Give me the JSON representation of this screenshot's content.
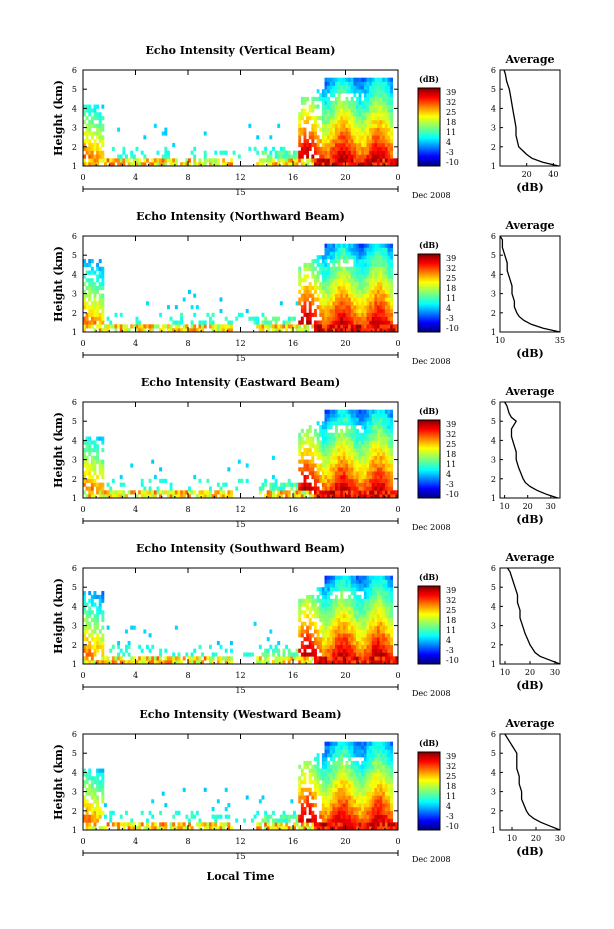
{
  "figure": {
    "x_tick_labels": [
      "0",
      "4",
      "8",
      "12",
      "16",
      "20",
      "0"
    ],
    "y_tick_labels": [
      "1",
      "2",
      "3",
      "4",
      "5",
      "6"
    ],
    "ylabel": "Height (km)",
    "date_label": "Dec 2008",
    "day_label": "15",
    "xlabel": "Local Time",
    "colorbar_unit": "(dB)",
    "colorbar_ticks": [
      "39",
      "32",
      "25",
      "18",
      "11",
      "4",
      "-3",
      "-10"
    ],
    "profile_title": "Average",
    "profile_xlabel": "(dB)"
  },
  "chart_data": [
    {
      "type": "heatmap",
      "title": "Echo Intensity (Vertical Beam)",
      "xlabel": "Local Time",
      "ylabel": "Height (km)",
      "x_range_hours": [
        0,
        24
      ],
      "ylim_km": [
        1,
        6
      ],
      "colorbar": {
        "label": "(dB)",
        "range": [
          -10,
          39
        ]
      },
      "average_profile": {
        "type": "line",
        "title": "Average",
        "xlabel": "(dB)",
        "xlim": [
          0,
          45
        ],
        "xticks": [
          "20",
          "40"
        ],
        "height_km": [
          1.0,
          1.2,
          1.4,
          1.6,
          1.8,
          2.0,
          2.3,
          2.6,
          3.0,
          3.4,
          3.8,
          4.2,
          4.6,
          5.0,
          5.4,
          5.8,
          6.0
        ],
        "db": [
          44,
          32,
          24,
          20,
          17,
          14,
          13,
          12,
          12,
          11,
          10,
          9,
          8,
          7,
          5,
          4,
          3
        ]
      }
    },
    {
      "type": "heatmap",
      "title": "Echo Intensity (Northward Beam)",
      "xlabel": "Local Time",
      "ylabel": "Height (km)",
      "x_range_hours": [
        0,
        24
      ],
      "ylim_km": [
        1,
        6
      ],
      "colorbar": {
        "label": "(dB)",
        "range": [
          -10,
          39
        ]
      },
      "average_profile": {
        "type": "line",
        "title": "Average",
        "xlabel": "(dB)",
        "xlim": [
          10,
          35
        ],
        "xticks": [
          "10",
          "35"
        ],
        "height_km": [
          1.0,
          1.2,
          1.4,
          1.6,
          1.8,
          2.0,
          2.3,
          2.6,
          3.0,
          3.4,
          3.8,
          4.2,
          4.6,
          5.0,
          5.4,
          5.8,
          6.0
        ],
        "db": [
          35,
          28,
          23,
          20,
          18,
          17,
          16,
          16,
          15,
          15,
          14,
          13,
          13,
          12,
          11,
          11,
          10
        ]
      }
    },
    {
      "type": "heatmap",
      "title": "Echo Intensity (Eastward Beam)",
      "xlabel": "Local Time",
      "ylabel": "Height (km)",
      "x_range_hours": [
        0,
        24
      ],
      "ylim_km": [
        1,
        6
      ],
      "colorbar": {
        "label": "(dB)",
        "range": [
          -10,
          39
        ]
      },
      "average_profile": {
        "type": "line",
        "title": "Average",
        "xlabel": "(dB)",
        "xlim": [
          8,
          34
        ],
        "xticks": [
          "10",
          "20",
          "30"
        ],
        "height_km": [
          1.0,
          1.2,
          1.4,
          1.6,
          1.8,
          2.0,
          2.3,
          2.6,
          3.0,
          3.4,
          3.8,
          4.2,
          4.6,
          5.0,
          5.2,
          5.4,
          5.8,
          6.0
        ],
        "db": [
          33,
          28,
          24,
          21,
          19,
          18,
          17,
          16,
          15,
          15,
          14,
          13,
          13,
          15,
          13,
          12,
          11,
          10
        ]
      }
    },
    {
      "type": "heatmap",
      "title": "Echo Intensity (Southward Beam)",
      "xlabel": "Local Time",
      "ylabel": "Height (km)",
      "x_range_hours": [
        0,
        24
      ],
      "ylim_km": [
        1,
        6
      ],
      "colorbar": {
        "label": "(dB)",
        "range": [
          -10,
          39
        ]
      },
      "average_profile": {
        "type": "line",
        "title": "Average",
        "xlabel": "(dB)",
        "xlim": [
          8,
          32
        ],
        "xticks": [
          "10",
          "20",
          "30"
        ],
        "height_km": [
          1.0,
          1.2,
          1.4,
          1.6,
          1.8,
          2.0,
          2.3,
          2.6,
          3.0,
          3.4,
          3.8,
          4.2,
          4.6,
          5.0,
          5.4,
          5.8,
          6.0
        ],
        "db": [
          32,
          28,
          24,
          22,
          21,
          20,
          19,
          18,
          17,
          16,
          16,
          15,
          15,
          14,
          13,
          12,
          11
        ]
      }
    },
    {
      "type": "heatmap",
      "title": "Echo Intensity (Westward Beam)",
      "xlabel": "Local Time",
      "ylabel": "Height (km)",
      "x_range_hours": [
        0,
        24
      ],
      "ylim_km": [
        1,
        6
      ],
      "colorbar": {
        "label": "(dB)",
        "range": [
          -10,
          39
        ]
      },
      "average_profile": {
        "type": "line",
        "title": "Average",
        "xlabel": "(dB)",
        "xlim": [
          5,
          30
        ],
        "xticks": [
          "10",
          "20",
          "30"
        ],
        "height_km": [
          1.0,
          1.2,
          1.4,
          1.6,
          1.8,
          2.0,
          2.3,
          2.6,
          3.0,
          3.4,
          3.8,
          4.2,
          4.6,
          5.0,
          5.4,
          5.8,
          6.0
        ],
        "db": [
          30,
          26,
          22,
          19,
          17,
          16,
          15,
          14,
          14,
          13,
          13,
          12,
          12,
          12,
          10,
          8,
          7
        ]
      }
    }
  ]
}
